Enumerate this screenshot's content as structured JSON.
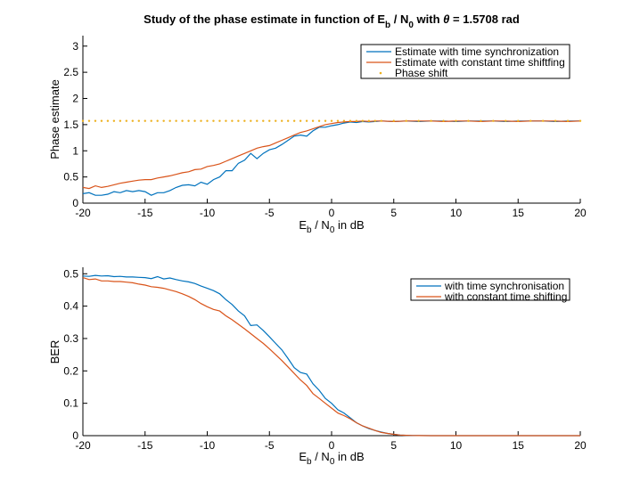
{
  "chart_data": [
    {
      "type": "line",
      "title": {
        "prefix": "Study of the phase estimate in function of E",
        "sub1": "b",
        "mid": " / N",
        "sub2": "0",
        "with": " with ",
        "theta": "θ",
        "suffix": " = 1.5708 rad"
      },
      "xlabel": {
        "a": "E",
        "a_sub": "b",
        "b": " / N",
        "b_sub": "0",
        "c": " in dB"
      },
      "ylabel": "Phase estimate",
      "xlim": [
        -20,
        20
      ],
      "ylim": [
        0,
        3.2
      ],
      "xticks": [
        -20,
        -15,
        -10,
        -5,
        0,
        5,
        10,
        15,
        20
      ],
      "xtick_labels": [
        "-20",
        "-15",
        "-10",
        "-5",
        "0",
        "5",
        "10",
        "15",
        "20"
      ],
      "yticks": [
        0,
        0.5,
        1,
        1.5,
        2,
        2.5,
        3
      ],
      "ytick_labels": [
        "0",
        "0.5",
        "1",
        "1.5",
        "2",
        "2.5",
        "3"
      ],
      "legend_position": "top-right",
      "x": [
        -20,
        -19.5,
        -19,
        -18.5,
        -18,
        -17.5,
        -17,
        -16.5,
        -16,
        -15.5,
        -15,
        -14.5,
        -14,
        -13.5,
        -13,
        -12.5,
        -12,
        -11.5,
        -11,
        -10.5,
        -10,
        -9.5,
        -9,
        -8.5,
        -8,
        -7.5,
        -7,
        -6.5,
        -6,
        -5.5,
        -5,
        -4.5,
        -4,
        -3.5,
        -3,
        -2.5,
        -2,
        -1.5,
        -1,
        -0.5,
        0,
        0.5,
        1,
        1.5,
        2,
        2.5,
        3,
        3.5,
        4,
        5,
        6,
        7,
        8,
        9,
        10,
        11,
        12,
        13,
        14,
        15,
        16,
        17,
        18,
        19,
        20
      ],
      "series": [
        {
          "name": "Estimate with time synchronization",
          "color": "#0072BD",
          "style": "solid",
          "values": [
            0.18,
            0.2,
            0.15,
            0.15,
            0.17,
            0.22,
            0.2,
            0.24,
            0.22,
            0.24,
            0.22,
            0.15,
            0.2,
            0.2,
            0.24,
            0.3,
            0.34,
            0.35,
            0.33,
            0.4,
            0.36,
            0.45,
            0.5,
            0.62,
            0.62,
            0.76,
            0.82,
            0.95,
            0.85,
            0.95,
            1.02,
            1.05,
            1.12,
            1.2,
            1.28,
            1.3,
            1.28,
            1.38,
            1.45,
            1.45,
            1.48,
            1.5,
            1.53,
            1.55,
            1.54,
            1.56,
            1.55,
            1.56,
            1.57,
            1.56,
            1.57,
            1.56,
            1.57,
            1.57,
            1.56,
            1.57,
            1.57,
            1.57,
            1.56,
            1.57,
            1.57,
            1.57,
            1.56,
            1.57,
            1.57
          ]
        },
        {
          "name": "Estimate with constant time shiftfing",
          "color": "#D95319",
          "style": "solid",
          "values": [
            0.3,
            0.28,
            0.33,
            0.3,
            0.32,
            0.35,
            0.38,
            0.4,
            0.42,
            0.44,
            0.45,
            0.45,
            0.48,
            0.5,
            0.52,
            0.55,
            0.58,
            0.6,
            0.64,
            0.65,
            0.7,
            0.72,
            0.75,
            0.8,
            0.85,
            0.9,
            0.95,
            1.0,
            1.05,
            1.08,
            1.1,
            1.15,
            1.2,
            1.25,
            1.3,
            1.35,
            1.38,
            1.42,
            1.46,
            1.5,
            1.52,
            1.54,
            1.55,
            1.56,
            1.56,
            1.57,
            1.56,
            1.57,
            1.57,
            1.56,
            1.57,
            1.57,
            1.57,
            1.56,
            1.57,
            1.57,
            1.56,
            1.57,
            1.57,
            1.56,
            1.57,
            1.57,
            1.57,
            1.56,
            1.57
          ]
        },
        {
          "name": "Phase shift",
          "color": "#EDB120",
          "style": "dotted",
          "values": [
            1.5708,
            1.5708,
            1.5708,
            1.5708,
            1.5708,
            1.5708,
            1.5708,
            1.5708,
            1.5708,
            1.5708,
            1.5708,
            1.5708,
            1.5708,
            1.5708,
            1.5708,
            1.5708,
            1.5708,
            1.5708,
            1.5708,
            1.5708,
            1.5708,
            1.5708,
            1.5708,
            1.5708,
            1.5708,
            1.5708,
            1.5708,
            1.5708,
            1.5708,
            1.5708,
            1.5708,
            1.5708,
            1.5708,
            1.5708,
            1.5708,
            1.5708,
            1.5708,
            1.5708,
            1.5708,
            1.5708,
            1.5708,
            1.5708,
            1.5708,
            1.5708,
            1.5708,
            1.5708,
            1.5708,
            1.5708,
            1.5708,
            1.5708,
            1.5708,
            1.5708,
            1.5708,
            1.5708,
            1.5708,
            1.5708,
            1.5708,
            1.5708,
            1.5708,
            1.5708,
            1.5708,
            1.5708,
            1.5708,
            1.5708,
            1.5708
          ]
        }
      ]
    },
    {
      "type": "line",
      "title": "",
      "xlabel": {
        "a": "E",
        "a_sub": "b",
        "b": " / N",
        "b_sub": "0",
        "c": " in dB"
      },
      "ylabel": "BER",
      "xlim": [
        -20,
        20
      ],
      "ylim": [
        0,
        0.52
      ],
      "xticks": [
        -20,
        -15,
        -10,
        -5,
        0,
        5,
        10,
        15,
        20
      ],
      "xtick_labels": [
        "-20",
        "-15",
        "-10",
        "-5",
        "0",
        "5",
        "10",
        "15",
        "20"
      ],
      "yticks": [
        0,
        0.1,
        0.2,
        0.3,
        0.4,
        0.5
      ],
      "ytick_labels": [
        "0",
        "0.1",
        "0.2",
        "0.3",
        "0.4",
        "0.5"
      ],
      "legend_position": "top-right",
      "x": [
        -20,
        -19.5,
        -19,
        -18.5,
        -18,
        -17.5,
        -17,
        -16.5,
        -16,
        -15.5,
        -15,
        -14.5,
        -14,
        -13.5,
        -13,
        -12.5,
        -12,
        -11.5,
        -11,
        -10.5,
        -10,
        -9.5,
        -9,
        -8.5,
        -8,
        -7.5,
        -7,
        -6.5,
        -6,
        -5.5,
        -5,
        -4.5,
        -4,
        -3.5,
        -3,
        -2.5,
        -2,
        -1.5,
        -1,
        -0.5,
        0,
        0.5,
        1,
        1.5,
        2,
        2.5,
        3,
        3.5,
        4,
        4.5,
        5,
        5.5,
        6,
        6.5,
        7,
        8,
        10,
        12,
        15,
        20
      ],
      "series": [
        {
          "name": "with time synchronisation",
          "color": "#0072BD",
          "style": "solid",
          "values": [
            0.493,
            0.492,
            0.495,
            0.493,
            0.494,
            0.491,
            0.492,
            0.49,
            0.49,
            0.489,
            0.488,
            0.485,
            0.491,
            0.484,
            0.487,
            0.482,
            0.478,
            0.475,
            0.47,
            0.462,
            0.455,
            0.448,
            0.438,
            0.42,
            0.405,
            0.385,
            0.37,
            0.34,
            0.342,
            0.325,
            0.305,
            0.285,
            0.265,
            0.238,
            0.21,
            0.195,
            0.19,
            0.16,
            0.14,
            0.115,
            0.1,
            0.08,
            0.07,
            0.055,
            0.04,
            0.03,
            0.022,
            0.016,
            0.011,
            0.007,
            0.004,
            0.002,
            0.001,
            0.0005,
            0.0002,
            0,
            0,
            0,
            0,
            0
          ]
        },
        {
          "name": "with constant time shifting",
          "color": "#D95319",
          "style": "solid",
          "values": [
            0.488,
            0.482,
            0.484,
            0.478,
            0.478,
            0.476,
            0.476,
            0.474,
            0.472,
            0.468,
            0.465,
            0.46,
            0.458,
            0.455,
            0.45,
            0.445,
            0.438,
            0.43,
            0.42,
            0.408,
            0.398,
            0.39,
            0.385,
            0.37,
            0.358,
            0.344,
            0.33,
            0.315,
            0.3,
            0.285,
            0.268,
            0.25,
            0.232,
            0.212,
            0.192,
            0.172,
            0.155,
            0.13,
            0.115,
            0.1,
            0.085,
            0.07,
            0.062,
            0.052,
            0.04,
            0.03,
            0.023,
            0.016,
            0.01,
            0.007,
            0.004,
            0.002,
            0.001,
            0.0005,
            0.0002,
            0,
            0,
            0,
            0,
            0
          ]
        }
      ]
    }
  ]
}
